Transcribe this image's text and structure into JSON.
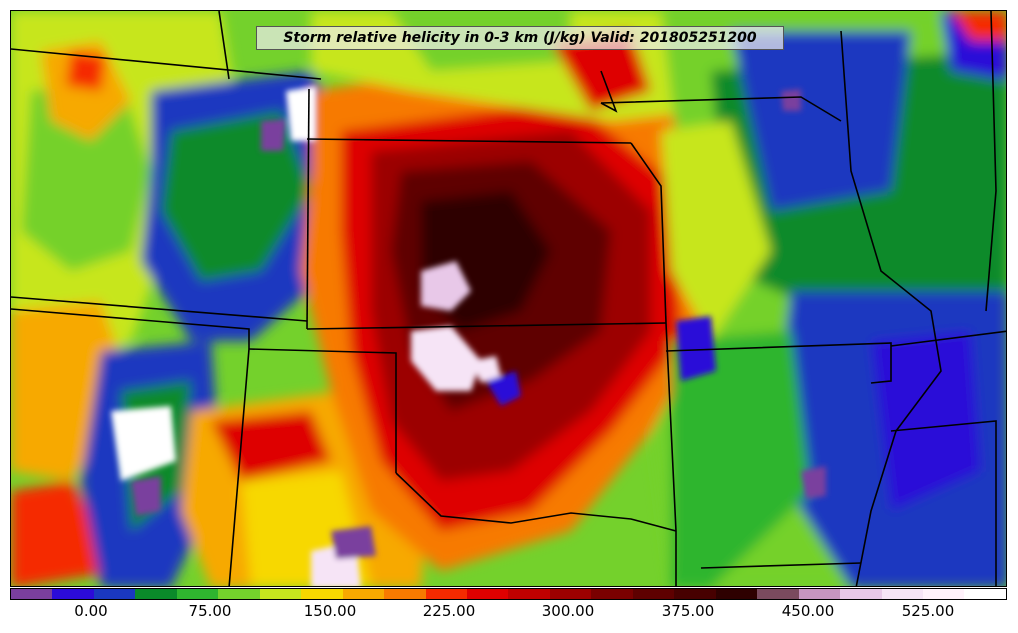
{
  "map": {
    "title": "Storm relative helicity in 0-3 km (J/kg) Valid: 201805251200",
    "field": "storm-relative-helicity-0-3km",
    "units": "J/kg",
    "valid_time": "201805251200"
  },
  "colorbar": {
    "colors": [
      "#7a3f9e",
      "#2c0bd8",
      "#1a38c0",
      "#0a8a2a",
      "#2fb52f",
      "#74d12c",
      "#c7e61e",
      "#f7d800",
      "#f7a900",
      "#f77a00",
      "#f52a00",
      "#de0000",
      "#bf0000",
      "#9c0000",
      "#7a0000",
      "#5e0000",
      "#470000",
      "#2e0000",
      "#7a4a5e",
      "#c795c0",
      "#e8c8e8",
      "#f6e4f6",
      "#fff2fb",
      "#ffffff"
    ],
    "tick_labels": [
      "0.00",
      "75.00",
      "150.00",
      "225.00",
      "300.00",
      "375.00",
      "450.00",
      "525.00"
    ]
  },
  "regions": [
    {
      "name": "far-west-stripes",
      "color": "#c7e61e"
    },
    {
      "name": "central-high",
      "color": "#7a0000"
    },
    {
      "name": "core",
      "color": "#2e0000"
    },
    {
      "name": "peak",
      "color": "#f6e4f6"
    },
    {
      "name": "east-low",
      "color": "#1a38c0"
    }
  ]
}
